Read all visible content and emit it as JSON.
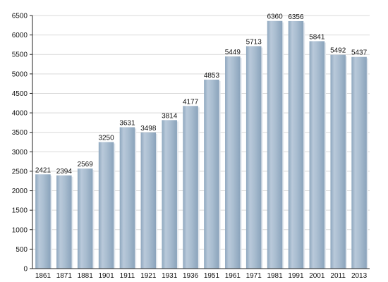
{
  "chart_data": {
    "type": "bar",
    "title": "",
    "xlabel": "",
    "ylabel": "",
    "categories": [
      "1861",
      "1871",
      "1881",
      "1901",
      "1911",
      "1921",
      "1931",
      "1936",
      "1951",
      "1961",
      "1971",
      "1981",
      "1991",
      "2001",
      "2011",
      "2013"
    ],
    "values": [
      2421,
      2394,
      2569,
      3250,
      3631,
      3498,
      3814,
      4177,
      4853,
      5449,
      5713,
      6360,
      6356,
      5841,
      5492,
      5437
    ],
    "ylim": [
      0,
      6500
    ],
    "yticks": [
      0,
      500,
      1000,
      1500,
      2000,
      2500,
      3000,
      3500,
      4000,
      4500,
      5000,
      5500,
      6000,
      6500
    ],
    "grid": true,
    "legend": "none",
    "colors": {
      "bar_light": "#c7d4e2",
      "bar_mid": "#a7bccf",
      "bar_dark": "#8ea7be",
      "gridline": "#d9d9d9",
      "axis": "#222222",
      "text": "#111111"
    }
  }
}
